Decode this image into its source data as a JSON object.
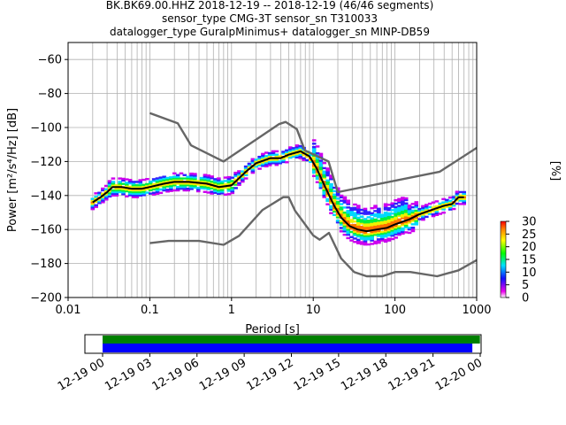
{
  "header": {
    "line1": "BK.BK69.00.HHZ   2018-12-19 -- 2018-12-19  (46/46 segments)",
    "line2": "sensor_type CMG-3T sensor_sn T310033",
    "line3": "datalogger_type GuralpMinimus+ datalogger_sn MINP-DB59"
  },
  "chart_data": [
    {
      "type": "heatmap",
      "title": "",
      "xlabel": "Period [s]",
      "ylabel": "Power [m²/s⁴/Hz] [dB]",
      "xscale": "log",
      "xlim": [
        0.01,
        1000
      ],
      "ylim": [
        -200,
        -50
      ],
      "x_ticks": [
        0.01,
        0.1,
        1,
        10,
        100,
        1000
      ],
      "x_tick_labels": [
        "0.01",
        "0.1",
        "1",
        "10",
        "100",
        "1000"
      ],
      "y_ticks": [
        -200,
        -180,
        -160,
        -140,
        -120,
        -100,
        -80,
        -60
      ],
      "y_tick_labels": [
        "−200",
        "−180",
        "−160",
        "−140",
        "−120",
        "−100",
        "−80",
        "−60"
      ],
      "grid": true,
      "colorbar": {
        "label": "[%]",
        "range": [
          0,
          30
        ],
        "ticks": [
          0,
          5,
          10,
          15,
          20,
          25,
          30
        ],
        "tick_labels": [
          "0",
          "5",
          "10",
          "15",
          "20",
          "25",
          "30"
        ]
      },
      "series": [
        {
          "key": "mode",
          "color": "#000000",
          "points": [
            [
              0.02,
              -144
            ],
            [
              0.025,
              -141
            ],
            [
              0.03,
              -138
            ],
            [
              0.035,
              -135
            ],
            [
              0.045,
              -135
            ],
            [
              0.06,
              -136
            ],
            [
              0.08,
              -136
            ],
            [
              0.1,
              -135
            ],
            [
              0.15,
              -133
            ],
            [
              0.2,
              -132
            ],
            [
              0.3,
              -132
            ],
            [
              0.5,
              -133
            ],
            [
              0.7,
              -135
            ],
            [
              1,
              -134
            ],
            [
              1.5,
              -126
            ],
            [
              2,
              -121
            ],
            [
              3,
              -118
            ],
            [
              4,
              -118
            ],
            [
              5,
              -116
            ],
            [
              7,
              -114
            ],
            [
              9,
              -117
            ],
            [
              11,
              -124
            ],
            [
              14,
              -135
            ],
            [
              18,
              -146
            ],
            [
              22,
              -153
            ],
            [
              28,
              -158
            ],
            [
              35,
              -160
            ],
            [
              45,
              -161
            ],
            [
              60,
              -160
            ],
            [
              80,
              -159
            ],
            [
              100,
              -157
            ],
            [
              150,
              -154
            ],
            [
              200,
              -151
            ],
            [
              300,
              -148
            ],
            [
              400,
              -146
            ],
            [
              500,
              -145
            ],
            [
              600,
              -141
            ],
            [
              700,
              -141
            ]
          ]
        },
        {
          "key": "noise_model_high",
          "color": "#666666",
          "points": [
            [
              0.1,
              -91.5
            ],
            [
              0.22,
              -97.5
            ],
            [
              0.32,
              -110.5
            ],
            [
              0.8,
              -120
            ],
            [
              3.8,
              -98
            ],
            [
              4.6,
              -96.7
            ],
            [
              6.3,
              -101
            ],
            [
              7.9,
              -113.5
            ],
            [
              15.4,
              -120
            ],
            [
              20,
              -138
            ],
            [
              354,
              -126
            ],
            [
              1000,
              -112
            ]
          ]
        },
        {
          "key": "noise_model_low",
          "color": "#666666",
          "points": [
            [
              0.1,
              -168
            ],
            [
              0.17,
              -166.7
            ],
            [
              0.4,
              -166.7
            ],
            [
              0.8,
              -169
            ],
            [
              1.24,
              -163.7
            ],
            [
              2.4,
              -148.5
            ],
            [
              4.3,
              -141
            ],
            [
              5,
              -141
            ],
            [
              6,
              -149
            ],
            [
              10,
              -163.5
            ],
            [
              12,
              -166
            ],
            [
              15.6,
              -162
            ],
            [
              21.9,
              -177
            ],
            [
              31.6,
              -185
            ],
            [
              45,
              -187.5
            ],
            [
              70,
              -187.5
            ],
            [
              101,
              -185
            ],
            [
              154,
              -185
            ],
            [
              328,
              -187.5
            ],
            [
              600,
              -184
            ],
            [
              1000,
              -178
            ]
          ]
        }
      ]
    },
    {
      "type": "timeline",
      "title": "",
      "xlim": [
        "2018-12-19 00:00",
        "2018-12-20 00:00"
      ],
      "tick_labels": [
        "12-19 00",
        "12-19 03",
        "12-19 06",
        "12-19 09",
        "12-19 12",
        "12-19 15",
        "12-19 18",
        "12-19 21",
        "12-20 00"
      ],
      "bars": [
        {
          "key": "data_coverage",
          "color": "#008000",
          "start": "2018-12-19 00:00",
          "end": "2018-12-19 23:59"
        },
        {
          "key": "psd_segments",
          "color": "#0000ff",
          "start": "2018-12-19 00:00",
          "end": "2018-12-19 23:30"
        }
      ]
    }
  ]
}
